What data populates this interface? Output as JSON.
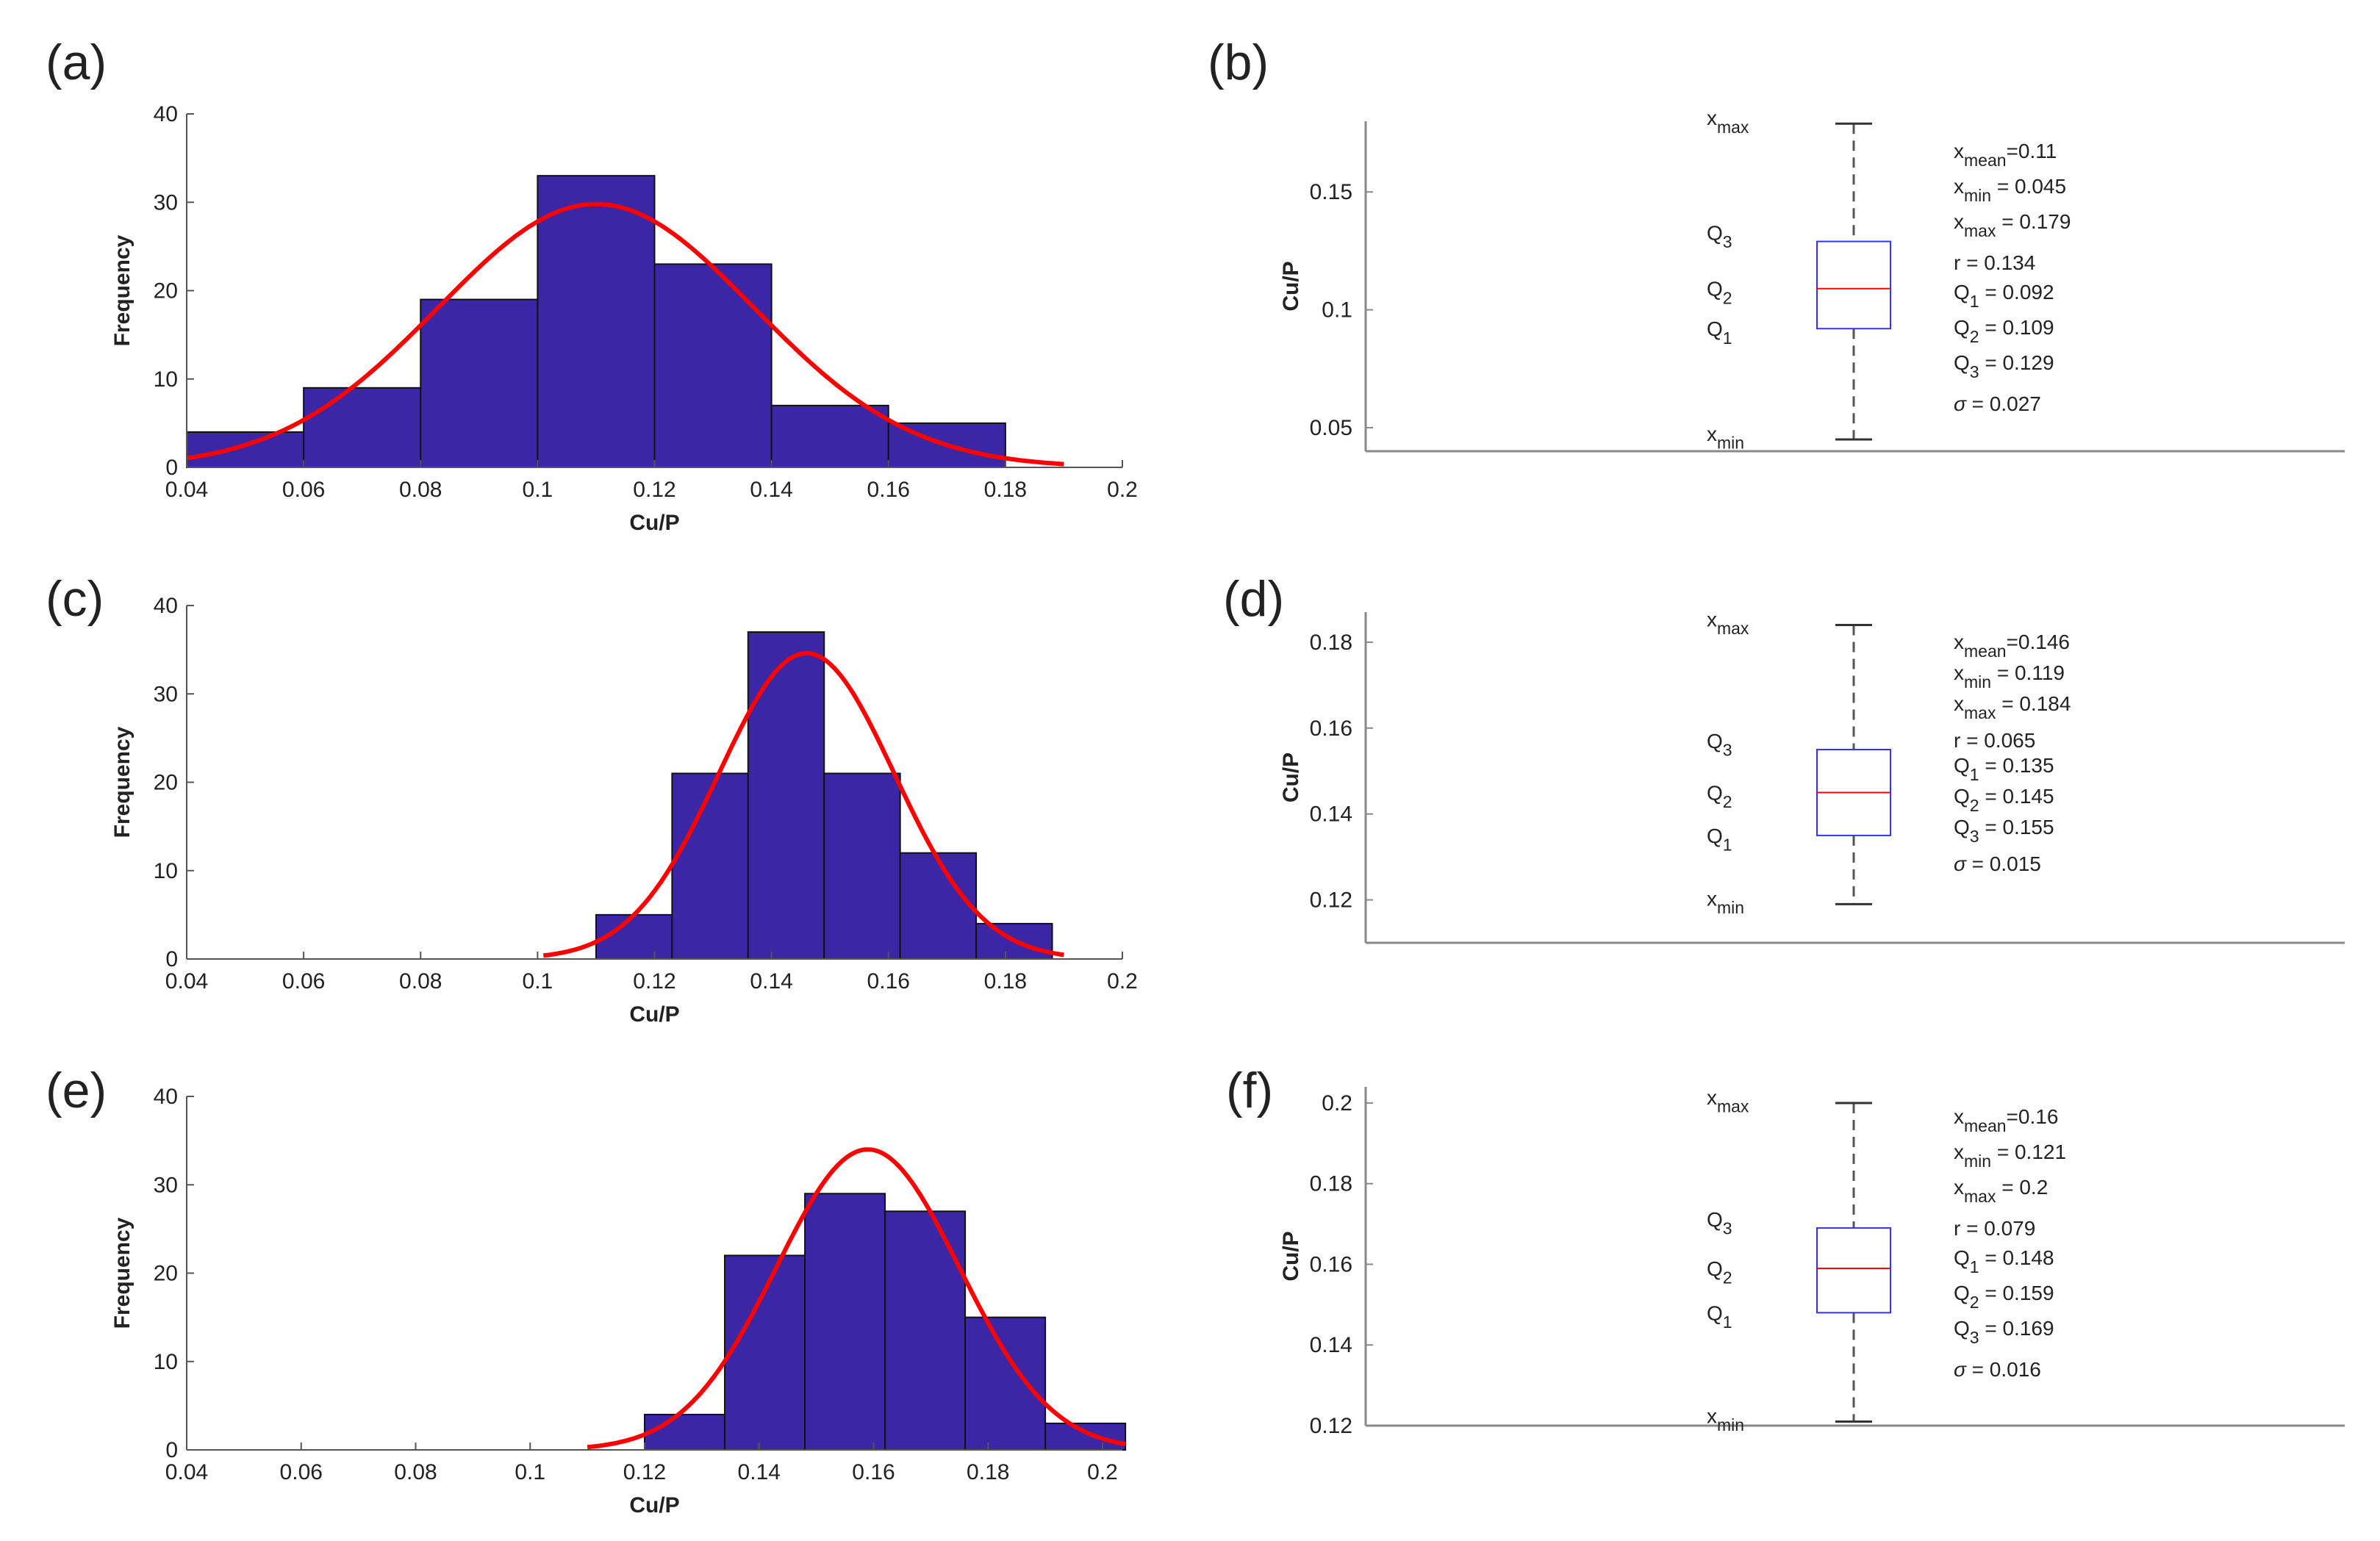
{
  "chart_data": [
    {
      "panel": "(a)",
      "type": "bar",
      "xlabel": "Cu/P",
      "ylabel": "Frequency",
      "xlim": [
        0.04,
        0.2
      ],
      "ylim": [
        0,
        40
      ],
      "xticks": [
        "0.04",
        "0.06",
        "0.08",
        "0.1",
        "0.12",
        "0.14",
        "0.16",
        "0.18",
        "0.2"
      ],
      "yticks": [
        "0",
        "10",
        "20",
        "30",
        "40"
      ],
      "bins": [
        [
          0.04,
          0.06
        ],
        [
          0.06,
          0.08
        ],
        [
          0.08,
          0.1
        ],
        [
          0.1,
          0.12
        ],
        [
          0.12,
          0.14
        ],
        [
          0.14,
          0.16
        ],
        [
          0.16,
          0.18
        ]
      ],
      "values": [
        4,
        9,
        19,
        33,
        23,
        7,
        5
      ],
      "bar_color": "#3b26a6",
      "fit": {
        "type": "normal",
        "mean": 0.11,
        "sigma": 0.027,
        "peak": 29.8,
        "range": [
          0.04,
          0.19
        ],
        "color": "#ff0000"
      }
    },
    {
      "panel": "(b)",
      "type": "box",
      "ylabel": "Cu/P",
      "ylim": [
        0.04,
        0.18
      ],
      "yticks": [
        "0.05",
        "0.1",
        "0.15"
      ],
      "box": {
        "min": 0.045,
        "q1": 0.092,
        "median": 0.109,
        "q3": 0.129,
        "max": 0.179
      },
      "side_labels": {
        "xmax": "x",
        "xmax_sub": "max",
        "q3": "Q",
        "q3_sub": "3",
        "q2": "Q",
        "q2_sub": "2",
        "q1": "Q",
        "q1_sub": "1",
        "xmin": "x",
        "xmin_sub": "min"
      },
      "stats": {
        "mean_sub": "mean",
        "mean_val": "=0.11",
        "min_sub": "min",
        "min_val": "= 0.045",
        "max_sub": "max",
        "max_val": "= 0.179",
        "r": "r = 0.134",
        "q1_val": "= 0.092",
        "q2_val": "= 0.109",
        "q3_val": "= 0.129",
        "sigma": "= 0.027"
      }
    },
    {
      "panel": "(c)",
      "type": "bar",
      "xlabel": "Cu/P",
      "ylabel": "Frequency",
      "xlim": [
        0.04,
        0.2
      ],
      "ylim": [
        0,
        40
      ],
      "xticks": [
        "0.04",
        "0.06",
        "0.08",
        "0.1",
        "0.12",
        "0.14",
        "0.16",
        "0.18",
        "0.2"
      ],
      "yticks": [
        "0",
        "10",
        "20",
        "30",
        "40"
      ],
      "bins": [
        [
          0.11,
          0.123
        ],
        [
          0.123,
          0.136
        ],
        [
          0.136,
          0.149
        ],
        [
          0.149,
          0.162
        ],
        [
          0.162,
          0.175
        ],
        [
          0.175,
          0.188
        ]
      ],
      "values": [
        5,
        21,
        37,
        21,
        12,
        4
      ],
      "bar_color": "#3b26a6",
      "fit": {
        "type": "normal",
        "mean": 0.146,
        "sigma": 0.015,
        "peak": 34.6,
        "range": [
          0.101,
          0.19
        ],
        "color": "#ff0000"
      }
    },
    {
      "panel": "(d)",
      "type": "box",
      "ylabel": "Cu/P",
      "ylim": [
        0.11,
        0.187
      ],
      "yticks": [
        "0.12",
        "0.14",
        "0.16",
        "0.18"
      ],
      "box": {
        "min": 0.119,
        "q1": 0.135,
        "median": 0.145,
        "q3": 0.155,
        "max": 0.184
      },
      "side_labels": {
        "xmax": "x",
        "xmax_sub": "max",
        "q3": "Q",
        "q3_sub": "3",
        "q2": "Q",
        "q2_sub": "2",
        "q1": "Q",
        "q1_sub": "1",
        "xmin": "x",
        "xmin_sub": "min"
      },
      "stats": {
        "mean_sub": "mean",
        "mean_val": "=0.146",
        "min_sub": "min",
        "min_val": "= 0.119",
        "max_sub": "max",
        "max_val": "= 0.184",
        "r": "r = 0.065",
        "q1_val": "= 0.135",
        "q2_val": "= 0.145",
        "q3_val": "= 0.155",
        "sigma": "= 0.015"
      }
    },
    {
      "panel": "(e)",
      "type": "bar",
      "xlabel": "Cu/P",
      "ylabel": "Frequency",
      "xlim": [
        0.04,
        0.204
      ],
      "ylim": [
        0,
        40
      ],
      "xticks": [
        "0.04",
        "0.06",
        "0.08",
        "0.1",
        "0.12",
        "0.14",
        "0.16",
        "0.18",
        "0.2"
      ],
      "yticks": [
        "0",
        "10",
        "20",
        "30",
        "40"
      ],
      "bins": [
        [
          0.12,
          0.134
        ],
        [
          0.134,
          0.148
        ],
        [
          0.148,
          0.162
        ],
        [
          0.162,
          0.176
        ],
        [
          0.176,
          0.19
        ],
        [
          0.19,
          0.204
        ]
      ],
      "values": [
        4,
        22,
        29,
        27,
        15,
        3
      ],
      "bar_color": "#3b26a6",
      "fit": {
        "type": "normal",
        "mean": 0.159,
        "sigma": 0.016,
        "peak": 34.0,
        "range": [
          0.11,
          0.204
        ],
        "color": "#ff0000"
      }
    },
    {
      "panel": "(f)",
      "type": "box",
      "ylabel": "Cu/P",
      "ylim": [
        0.12,
        0.204
      ],
      "yticks": [
        "0.12",
        "0.14",
        "0.16",
        "0.18",
        "0.2"
      ],
      "box": {
        "min": 0.121,
        "q1": 0.148,
        "median": 0.159,
        "q3": 0.169,
        "max": 0.2
      },
      "side_labels": {
        "xmax": "x",
        "xmax_sub": "max",
        "q3": "Q",
        "q3_sub": "3",
        "q2": "Q",
        "q2_sub": "2",
        "q1": "Q",
        "q1_sub": "1",
        "xmin": "x",
        "xmin_sub": "min"
      },
      "stats": {
        "mean_sub": "mean",
        "mean_val": "=0.16",
        "min_sub": "min",
        "min_val": "= 0.121",
        "max_sub": "max",
        "max_val": "= 0.2",
        "r": "r = 0.079",
        "q1_val": "= 0.148",
        "q2_val": "= 0.159",
        "q3_val": "= 0.169",
        "sigma": "= 0.016"
      }
    }
  ]
}
